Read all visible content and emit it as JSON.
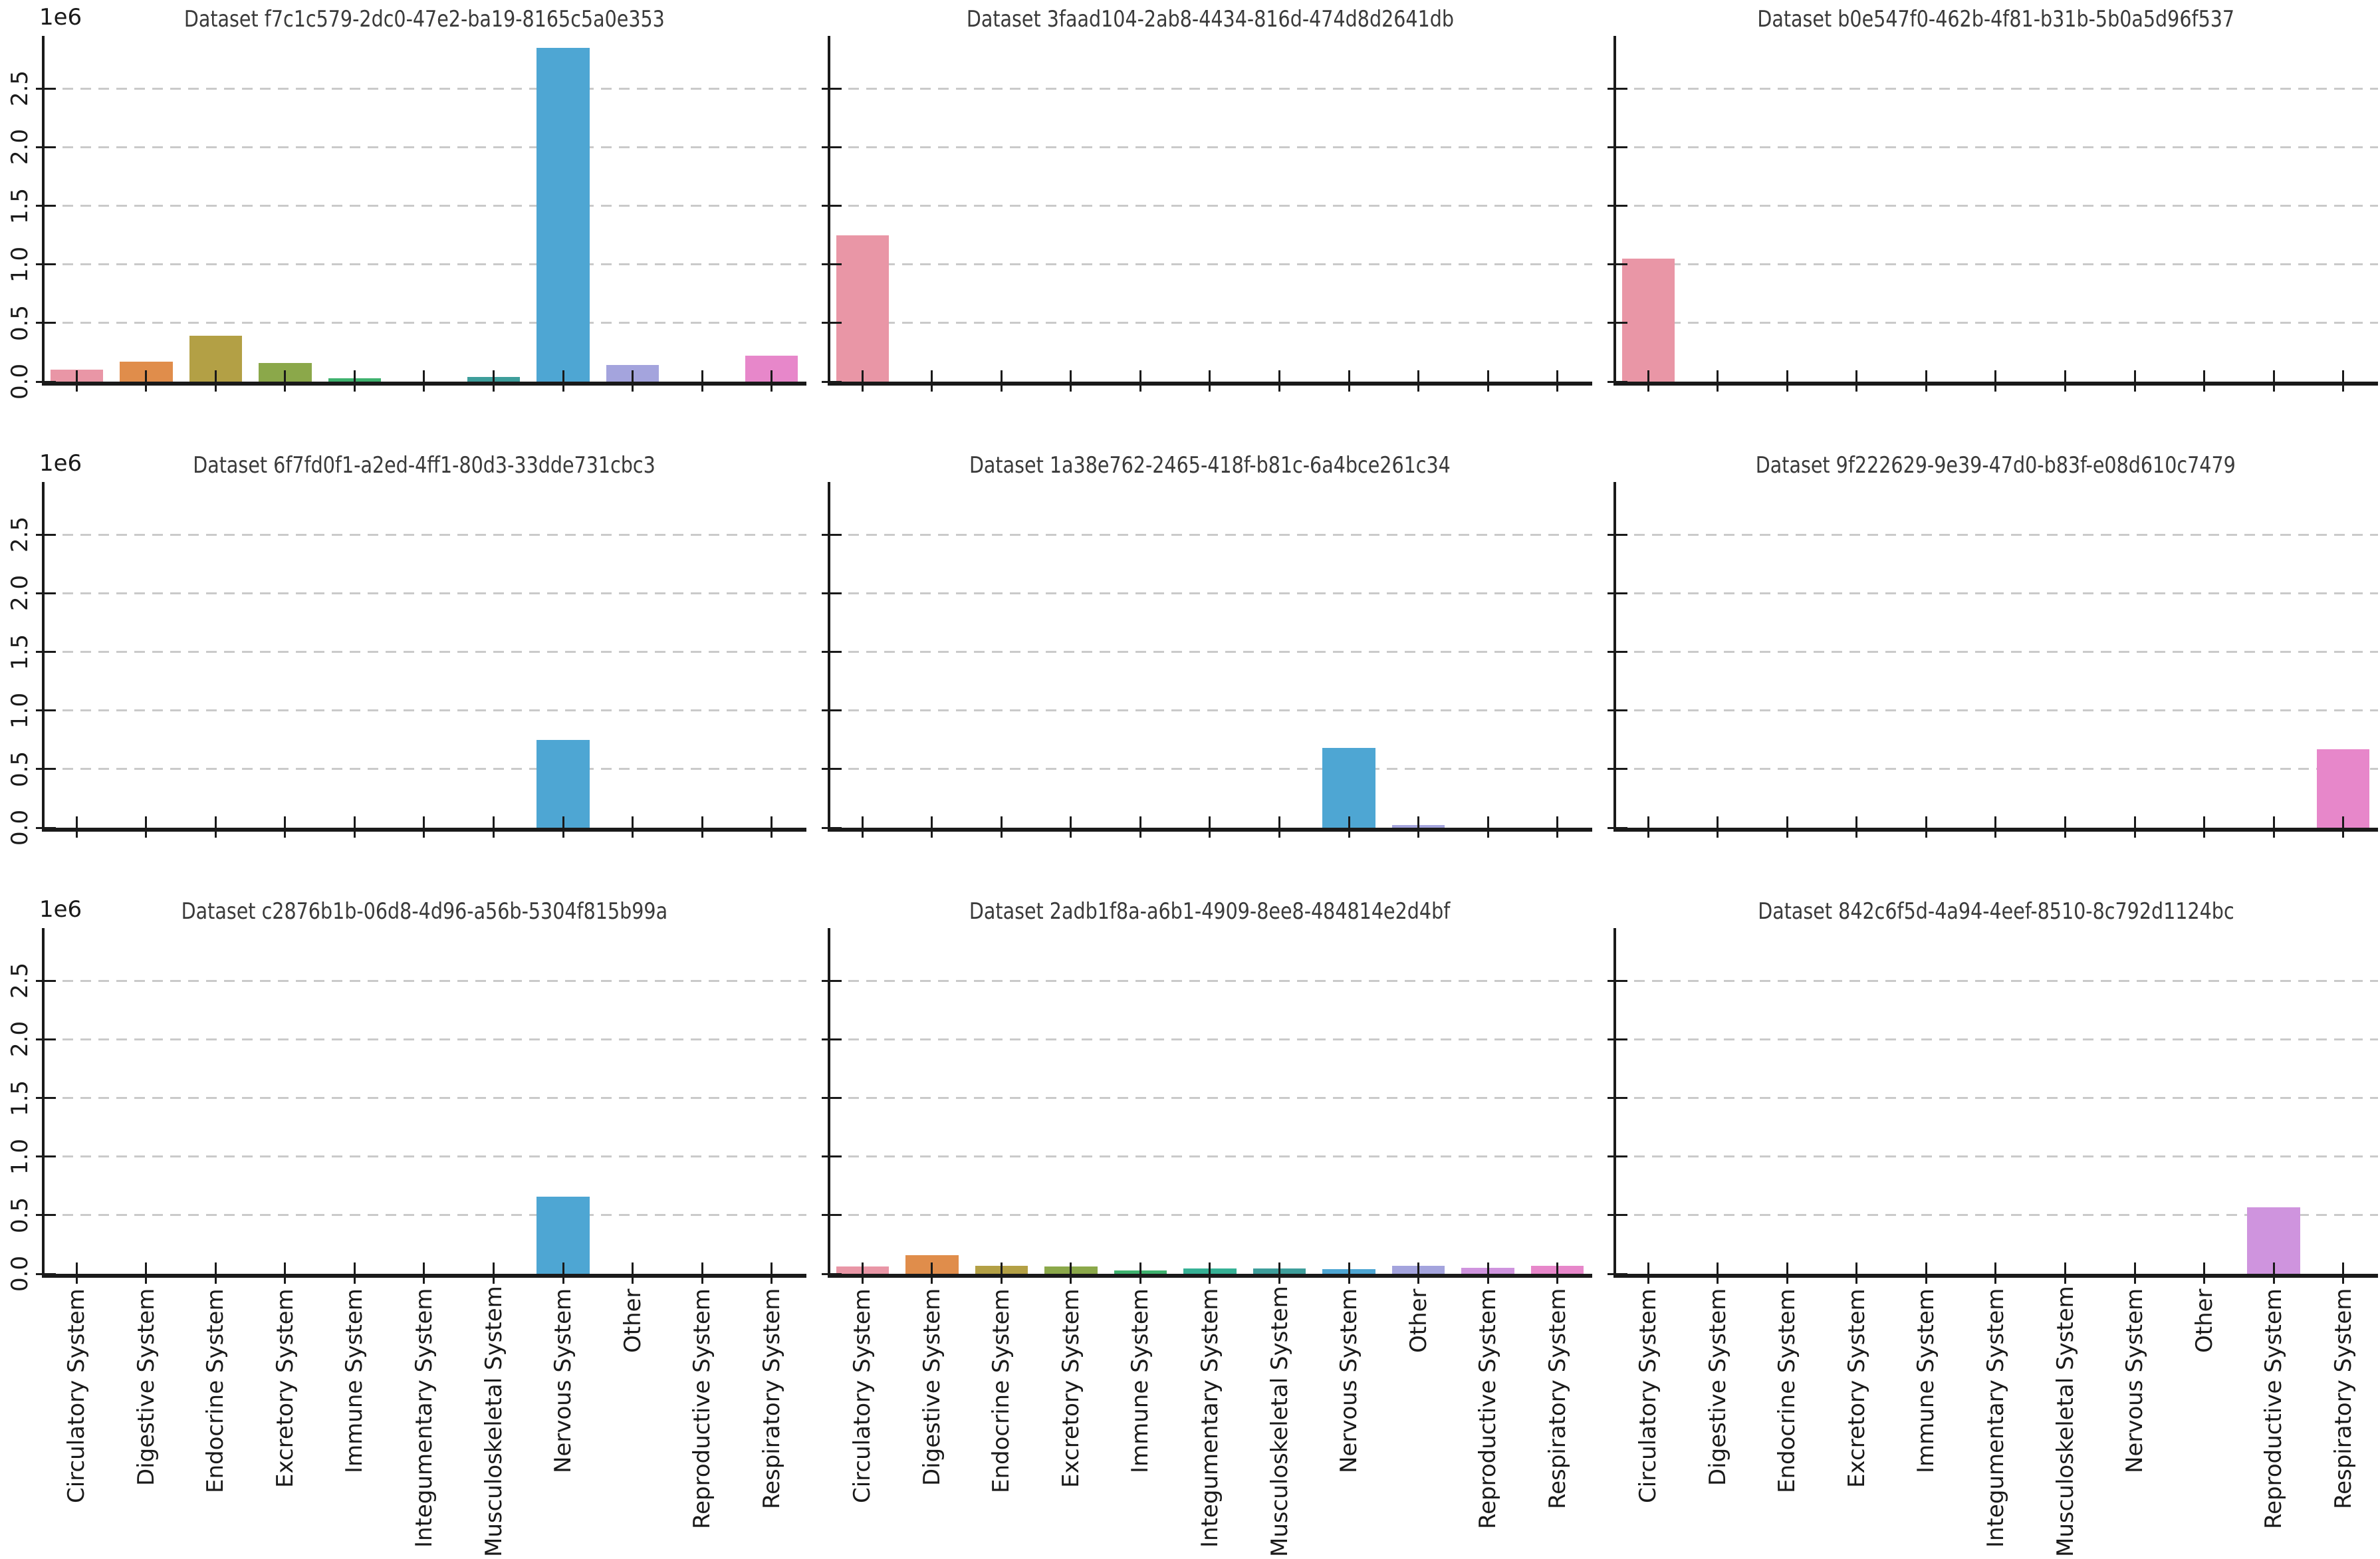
{
  "figure": {
    "background": "#ffffff",
    "grid_color": "#cacaca",
    "axis_color": "#1a1a1a",
    "title_color": "#3a3a3a",
    "tick_label_color": "#1a1a1a"
  },
  "chart_data": {
    "type": "bar",
    "layout": "3x3 grid of subplots with shared axes; y tick labels on left column only, rotated x tick labels on bottom row only",
    "grid": "horizontal dashed gridlines at each labeled y tick",
    "categories": [
      "Circulatory System",
      "Digestive System",
      "Endocrine System",
      "Excretory System",
      "Immune System",
      "Integumentary System",
      "Musculoskeletal System",
      "Nervous System",
      "Other",
      "Reproductive System",
      "Respiratory System"
    ],
    "palette": [
      "#e996a6",
      "#e08d4b",
      "#b3a045",
      "#8ba84a",
      "#3eb26e",
      "#36b195",
      "#3e9e9b",
      "#4ea6d3",
      "#a4a4dd",
      "#cf94de",
      "#e787ca"
    ],
    "y_axis": {
      "offset_label": "1e6",
      "tick_values": [
        0,
        500000,
        1000000,
        1500000,
        2000000,
        2500000
      ],
      "tick_labels": [
        "0.0",
        "0.5",
        "1.0",
        "1.5",
        "2.0",
        "2.5"
      ],
      "ylim": [
        0,
        2950000
      ]
    },
    "subplots": [
      {
        "title": "Dataset f7c1c579-2dc0-47e2-ba19-8165c5a0e353",
        "values": [
          100000,
          170000,
          390000,
          160000,
          30000,
          0,
          40000,
          2850000,
          140000,
          0,
          220000
        ]
      },
      {
        "title": "Dataset 3faad104-2ab8-4434-816d-474d8d2641db",
        "values": [
          1250000,
          0,
          0,
          0,
          0,
          0,
          0,
          0,
          0,
          0,
          0
        ]
      },
      {
        "title": "Dataset b0e547f0-462b-4f81-b31b-5b0a5d96f537",
        "values": [
          1050000,
          0,
          0,
          0,
          0,
          0,
          0,
          0,
          0,
          0,
          0
        ]
      },
      {
        "title": "Dataset 6f7fd0f1-a2ed-4ff1-80d3-33dde731cbc3",
        "values": [
          0,
          0,
          0,
          0,
          0,
          0,
          0,
          750000,
          0,
          0,
          0
        ]
      },
      {
        "title": "Dataset 1a38e762-2465-418f-b81c-6a4bce261c34",
        "values": [
          0,
          0,
          0,
          0,
          0,
          0,
          0,
          680000,
          20000,
          0,
          0
        ]
      },
      {
        "title": "Dataset 9f222629-9e39-47d0-b83f-e08d610c7479",
        "values": [
          0,
          0,
          0,
          0,
          0,
          0,
          0,
          0,
          0,
          0,
          670000
        ]
      },
      {
        "title": "Dataset c2876b1b-06d8-4d96-a56b-5304f815b99a",
        "values": [
          0,
          0,
          0,
          0,
          0,
          0,
          0,
          660000,
          0,
          0,
          0
        ]
      },
      {
        "title": "Dataset 2adb1f8a-a6b1-4909-8ee8-484814e2d4bf",
        "values": [
          60000,
          160000,
          70000,
          60000,
          30000,
          45000,
          45000,
          40000,
          70000,
          50000,
          70000
        ]
      },
      {
        "title": "Dataset 842c6f5d-4a94-4eef-8510-8c792d1124bc",
        "values": [
          0,
          0,
          0,
          0,
          0,
          0,
          0,
          0,
          0,
          570000,
          0
        ]
      }
    ]
  }
}
